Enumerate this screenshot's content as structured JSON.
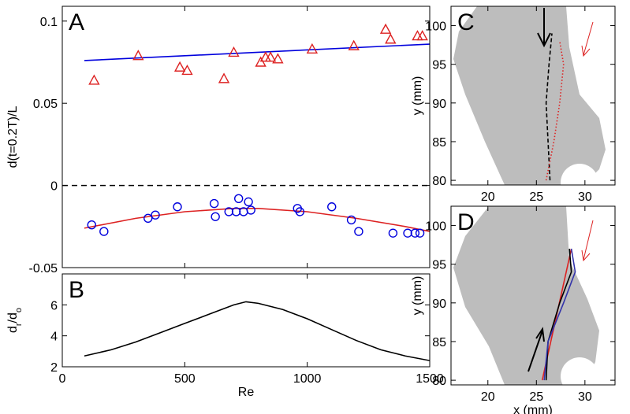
{
  "chart_data": [
    {
      "type": "scatter",
      "panel": "A",
      "ylabel": "d(t=0.2T)/L",
      "xlim": [
        0,
        1500
      ],
      "ylim": [
        -0.05,
        0.109
      ],
      "xticks": [
        0,
        500,
        1000,
        1500
      ],
      "xtick_labels": false,
      "yticks": [
        -0.05,
        0,
        0.05,
        0.1
      ],
      "hline": 0,
      "series": [
        {
          "mode": "line",
          "color": "#0000dd",
          "x": [
            90,
            1500
          ],
          "values": [
            0.076,
            0.086
          ]
        },
        {
          "mode": "markers",
          "marker": "triangle",
          "color": "#dd2222",
          "x": [
            130,
            310,
            480,
            510,
            660,
            700,
            810,
            830,
            850,
            880,
            1020,
            1190,
            1320,
            1340,
            1450,
            1470
          ],
          "values": [
            0.064,
            0.079,
            0.072,
            0.07,
            0.065,
            0.081,
            0.075,
            0.078,
            0.078,
            0.077,
            0.083,
            0.085,
            0.095,
            0.089,
            0.091,
            0.091
          ]
        },
        {
          "mode": "line",
          "color": "#dd2222",
          "x": [
            90,
            300,
            500,
            700,
            800,
            1000,
            1200,
            1400,
            1500
          ],
          "values": [
            -0.026,
            -0.02,
            -0.016,
            -0.014,
            -0.014,
            -0.016,
            -0.02,
            -0.025,
            -0.028
          ]
        },
        {
          "mode": "markers",
          "marker": "circle",
          "color": "#0000dd",
          "x": [
            120,
            170,
            350,
            380,
            470,
            620,
            625,
            680,
            710,
            720,
            740,
            760,
            770,
            960,
            970,
            1100,
            1180,
            1210,
            1350,
            1410,
            1440,
            1460
          ],
          "values": [
            -0.024,
            -0.028,
            -0.02,
            -0.018,
            -0.013,
            -0.011,
            -0.019,
            -0.016,
            -0.016,
            -0.008,
            -0.016,
            -0.01,
            -0.015,
            -0.014,
            -0.016,
            -0.013,
            -0.021,
            -0.028,
            -0.029,
            -0.029,
            -0.029,
            -0.029
          ]
        }
      ]
    },
    {
      "type": "line",
      "panel": "B",
      "ylabel_parts": [
        "d",
        "r",
        "/d",
        "o"
      ],
      "xlabel": "Re",
      "xlim": [
        0,
        1500
      ],
      "ylim": [
        2,
        8
      ],
      "xticks": [
        0,
        500,
        1000,
        1500
      ],
      "xtick_labels": true,
      "yticks": [
        2,
        4,
        6
      ],
      "series": [
        {
          "mode": "line",
          "color": "#000000",
          "x": [
            90,
            200,
            300,
            400,
            500,
            600,
            700,
            750,
            800,
            900,
            1000,
            1100,
            1200,
            1300,
            1400,
            1500
          ],
          "values": [
            2.7,
            3.1,
            3.6,
            4.2,
            4.8,
            5.4,
            6.0,
            6.2,
            6.1,
            5.7,
            5.1,
            4.4,
            3.7,
            3.1,
            2.7,
            2.4
          ]
        }
      ]
    },
    {
      "type": "line",
      "panel": "C",
      "ylabel": "y (mm)",
      "xlim": [
        16.2,
        33.1
      ],
      "ylim": [
        79.4,
        102.5
      ],
      "xticks": [
        20,
        25,
        30
      ],
      "xtick_labels": true,
      "yticks": [
        80,
        85,
        90,
        95,
        100
      ],
      "series": [
        {
          "mode": "line",
          "dash": "dashed",
          "color": "#000000",
          "x": [
            26.4,
            26.2,
            26.0,
            26.3,
            26.6
          ],
          "values": [
            80,
            85,
            90,
            95,
            99
          ]
        },
        {
          "mode": "line",
          "dash": "dotted",
          "color": "#dd2222",
          "x": [
            26.0,
            26.8,
            27.4,
            27.8,
            27.4
          ],
          "values": [
            80,
            85,
            90,
            95,
            98
          ]
        }
      ]
    },
    {
      "type": "line",
      "panel": "D",
      "ylabel": "y (mm)",
      "xlabel": "x (mm)",
      "xlim": [
        16.2,
        33.1
      ],
      "ylim": [
        79.4,
        102.5
      ],
      "xticks": [
        20,
        25,
        30
      ],
      "xtick_labels": true,
      "yticks": [
        80,
        85,
        90,
        95,
        100
      ],
      "series": [
        {
          "mode": "line",
          "color": "#dd2222",
          "x": [
            25.6,
            28.6
          ],
          "values": [
            80,
            97
          ]
        },
        {
          "mode": "line",
          "color": "#000000",
          "x": [
            26.0,
            26.2,
            27.4,
            28.6,
            28.4
          ],
          "values": [
            80,
            85,
            90,
            94,
            97
          ]
        },
        {
          "mode": "line",
          "color": "#3333aa",
          "x": [
            25.8,
            26.2,
            27.8,
            29.0,
            28.6
          ],
          "values": [
            80,
            85,
            90,
            94,
            97
          ]
        }
      ]
    }
  ]
}
